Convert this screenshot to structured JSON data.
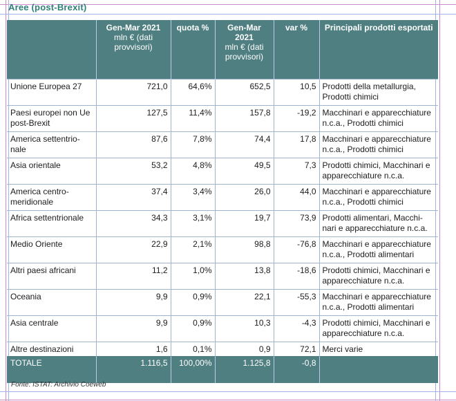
{
  "title": "Aree (post-Brexit)",
  "headers": [
    {
      "main": "",
      "sub": ""
    },
    {
      "main": "Gen-Mar 2021",
      "sub": "mln € (dati provvisori)"
    },
    {
      "main": "quota %",
      "sub": ""
    },
    {
      "main": "Gen-Mar 2021",
      "sub": "mln € (dati provvisori)"
    },
    {
      "main": "var %",
      "sub": ""
    },
    {
      "main": "Principali prodotti esportati",
      "sub": ""
    }
  ],
  "rows": [
    {
      "area": "Unione Europea 27",
      "v1": "721,0",
      "quota": "64,6%",
      "v2": "652,5",
      "var": "10,5",
      "prodotti": "Prodotti della metallurgia, Prodotti chimici"
    },
    {
      "area": "Paesi europei non Ue post-Brexit",
      "v1": "127,5",
      "quota": "11,4%",
      "v2": "157,8",
      "var": "-19,2",
      "prodotti": "Macchinari e apparecchiature n.c.a., Prodotti chimici"
    },
    {
      "area": "America settentrio-nale",
      "v1": "87,6",
      "quota": "7,8%",
      "v2": "74,4",
      "var": "17,8",
      "prodotti": "Macchinari e apparecchiature n.c.a., Prodotti chimici"
    },
    {
      "area": "Asia orientale",
      "v1": "53,2",
      "quota": "4,8%",
      "v2": "49,5",
      "var": "7,3",
      "prodotti": "Prodotti chimici, Macchinari e apparecchiature n.c.a."
    },
    {
      "area": "America centro-meridionale",
      "v1": "37,4",
      "quota": "3,4%",
      "v2": "26,0",
      "var": "44,0",
      "prodotti": "Macchinari e apparecchiature n.c.a., Prodotti chimici"
    },
    {
      "area": "Africa settentrionale",
      "v1": "34,3",
      "quota": "3,1%",
      "v2": "19,7",
      "var": "73,9",
      "prodotti": "Prodotti alimentari, Macchi-nari e apparecchiature n.c.a."
    },
    {
      "area": "Medio Oriente",
      "v1": "22,9",
      "quota": "2,1%",
      "v2": "98,8",
      "var": "-76,8",
      "prodotti": "Macchinari e apparecchiature n.c.a., Prodotti alimentari"
    },
    {
      "area": "Altri paesi africani",
      "v1": "11,2",
      "quota": "1,0%",
      "v2": "13,8",
      "var": "-18,6",
      "prodotti": "Prodotti chimici, Macchinari e apparecchiature n.c.a."
    },
    {
      "area": "Oceania",
      "v1": "9,9",
      "quota": "0,9%",
      "v2": "22,1",
      "var": "-55,3",
      "prodotti": "Macchinari e apparecchiature n.c.a., Prodotti alimentari"
    },
    {
      "area": "Asia centrale",
      "v1": "9,9",
      "quota": "0,9%",
      "v2": "10,3",
      "var": "-4,3",
      "prodotti": "Prodotti chimici, Macchinari e apparecchiature n.c.a."
    },
    {
      "area": "Altre destinazioni",
      "v1": "1,6",
      "quota": "0,1%",
      "v2": "0,9",
      "var": "72,1",
      "prodotti": "Merci varie"
    }
  ],
  "total": {
    "area": "TOTALE",
    "v1": "1.116,5",
    "quota": "100,00%",
    "v2": "1.125,8",
    "var": "-0,8",
    "prodotti": ""
  },
  "source": "Fonte: ISTAT: Archivio Coeweb",
  "colors": {
    "header_bg": "#4f7f81",
    "title": "#2f7f7a",
    "grid": "#9fb5cf"
  }
}
